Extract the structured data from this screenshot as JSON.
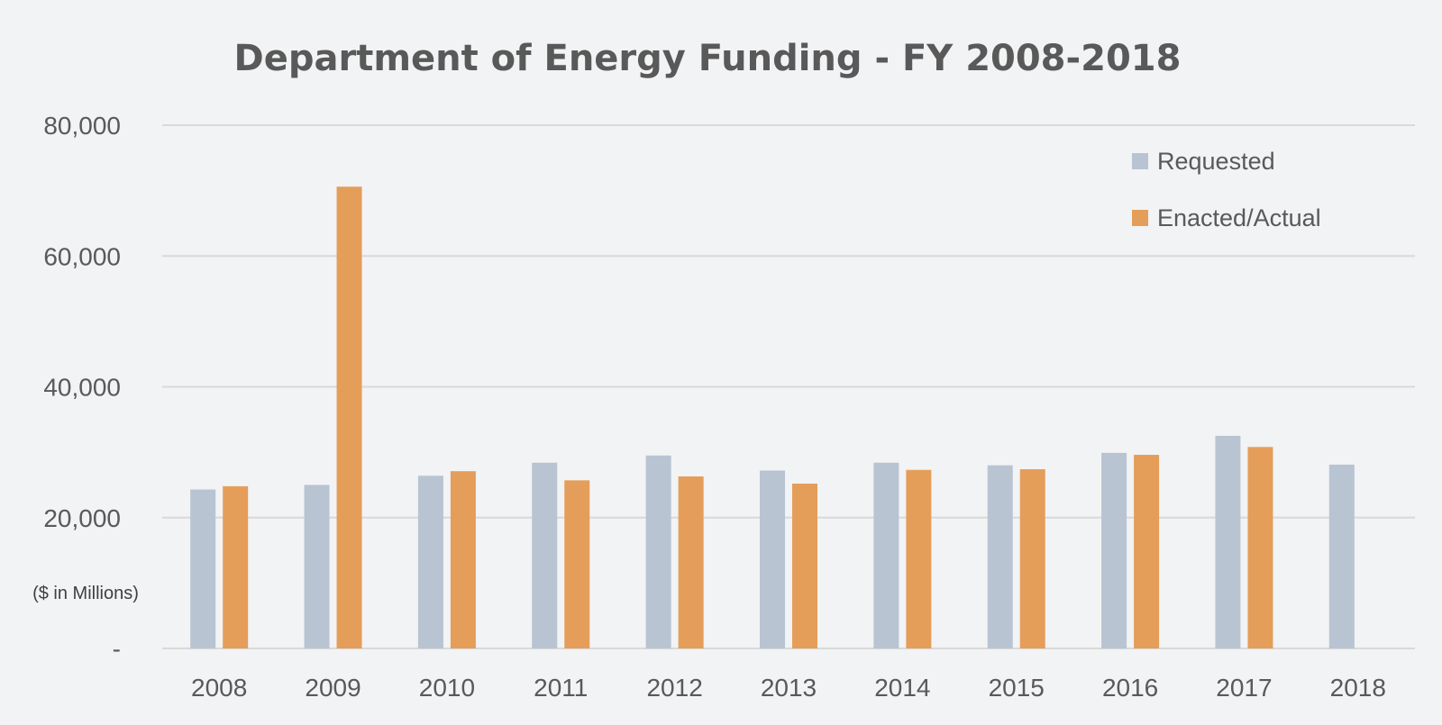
{
  "colors": {
    "background": "#f2f3f4",
    "requested": "#b8c4d2",
    "enacted": "#e49e5a",
    "grid": "#d9d9d9",
    "text": "#595959"
  },
  "chart_data": {
    "type": "bar",
    "title": "Department of Energy Funding - FY 2008-2018",
    "ylabel": "($ in Millions)",
    "xlabel": "",
    "categories": [
      "2008",
      "2009",
      "2010",
      "2011",
      "2012",
      "2013",
      "2014",
      "2015",
      "2016",
      "2017",
      "2018"
    ],
    "series": [
      {
        "name": "Requested",
        "values": [
          24300,
          25000,
          26400,
          28400,
          29500,
          27200,
          28400,
          28000,
          29900,
          32500,
          28100
        ]
      },
      {
        "name": "Enacted/Actual",
        "values": [
          24800,
          70600,
          27100,
          25700,
          26300,
          25200,
          27300,
          27400,
          29600,
          30800,
          null
        ]
      }
    ],
    "ylim": [
      0,
      80000
    ],
    "yticks": [
      0,
      20000,
      40000,
      60000,
      80000
    ],
    "ytick_labels": [
      "-",
      "20,000",
      "40,000",
      "60,000",
      "80,000"
    ],
    "grid": true,
    "legend_position": "top-right"
  }
}
